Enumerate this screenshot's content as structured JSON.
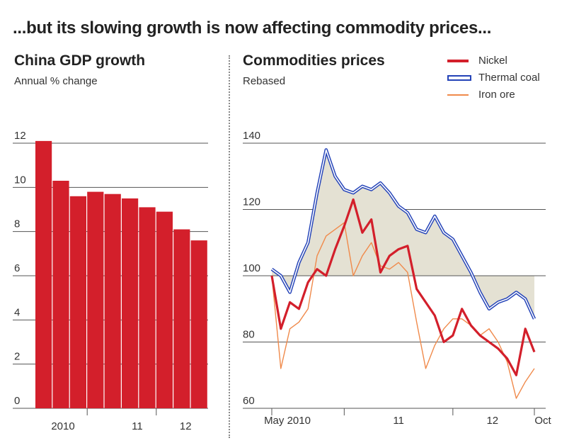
{
  "headline": "...but its slowing growth is now affecting commodity prices...",
  "colors": {
    "red": "#d31f2b",
    "blue": "#2443b8",
    "orange": "#f08a4b",
    "fill": "#e4e1d3",
    "grid": "#555555"
  },
  "chart_data": [
    {
      "type": "bar",
      "title": "China GDP growth",
      "subtitle": "Annual % change",
      "categories": [
        "2010 Q1",
        "2010 Q2",
        "2010 Q3",
        "2010 Q4",
        "2011 Q1",
        "2011 Q2",
        "2011 Q3",
        "2011 Q4",
        "2012 Q1",
        "2012 Q2"
      ],
      "values": [
        12.1,
        10.3,
        9.6,
        9.8,
        9.7,
        9.5,
        9.1,
        8.9,
        8.1,
        7.6
      ],
      "ylim": [
        0,
        12
      ],
      "yticks": [
        "0",
        "2",
        "4",
        "6",
        "8",
        "10",
        "12"
      ],
      "xtick_labels": [
        "2010",
        "11",
        "12"
      ],
      "grid": true
    },
    {
      "type": "line",
      "title": "Commodities prices",
      "subtitle": "Rebased",
      "ylim": [
        60,
        140
      ],
      "yticks": [
        "60",
        "80",
        "100",
        "120",
        "140"
      ],
      "xtick_labels": [
        "May 2010",
        "11",
        "12",
        "Oct"
      ],
      "x_range": [
        "2010-05",
        "2012-10"
      ],
      "grid": true,
      "legend_position": "top-right",
      "series": [
        {
          "name": "Nickel",
          "x": [
            "2010-05",
            "2010-06",
            "2010-07",
            "2010-08",
            "2010-09",
            "2010-10",
            "2010-11",
            "2010-12",
            "2011-01",
            "2011-02",
            "2011-03",
            "2011-04",
            "2011-05",
            "2011-06",
            "2011-07",
            "2011-08",
            "2011-09",
            "2011-10",
            "2011-11",
            "2011-12",
            "2012-01",
            "2012-02",
            "2012-03",
            "2012-04",
            "2012-05",
            "2012-06",
            "2012-07",
            "2012-08",
            "2012-09",
            "2012-10"
          ],
          "values": [
            100,
            84,
            92,
            90,
            98,
            102,
            100,
            108,
            115,
            123,
            113,
            117,
            101,
            106,
            108,
            109,
            96,
            92,
            88,
            80,
            82,
            90,
            85,
            82,
            80,
            78,
            75,
            70,
            84,
            77
          ]
        },
        {
          "name": "Thermal coal",
          "x": [
            "2010-05",
            "2010-06",
            "2010-07",
            "2010-08",
            "2010-09",
            "2010-10",
            "2010-11",
            "2010-12",
            "2011-01",
            "2011-02",
            "2011-03",
            "2011-04",
            "2011-05",
            "2011-06",
            "2011-07",
            "2011-08",
            "2011-09",
            "2011-10",
            "2011-11",
            "2011-12",
            "2012-01",
            "2012-02",
            "2012-03",
            "2012-04",
            "2012-05",
            "2012-06",
            "2012-07",
            "2012-08",
            "2012-09",
            "2012-10"
          ],
          "values": [
            102,
            100,
            95,
            104,
            110,
            125,
            138,
            130,
            126,
            125,
            127,
            126,
            128,
            125,
            121,
            119,
            114,
            113,
            118,
            113,
            111,
            106,
            101,
            95,
            90,
            92,
            93,
            95,
            93,
            87
          ]
        },
        {
          "name": "Iron ore",
          "x": [
            "2010-05",
            "2010-06",
            "2010-07",
            "2010-08",
            "2010-09",
            "2010-10",
            "2010-11",
            "2010-12",
            "2011-01",
            "2011-02",
            "2011-03",
            "2011-04",
            "2011-05",
            "2011-06",
            "2011-07",
            "2011-08",
            "2011-09",
            "2011-10",
            "2011-11",
            "2011-12",
            "2012-01",
            "2012-02",
            "2012-03",
            "2012-04",
            "2012-05",
            "2012-06",
            "2012-07",
            "2012-08",
            "2012-09",
            "2012-10"
          ],
          "values": [
            100,
            72,
            84,
            86,
            90,
            106,
            112,
            114,
            116,
            100,
            106,
            110,
            103,
            102,
            104,
            101,
            86,
            72,
            79,
            84,
            87,
            87,
            85,
            82,
            84,
            80,
            74,
            63,
            68,
            72
          ]
        }
      ]
    }
  ]
}
